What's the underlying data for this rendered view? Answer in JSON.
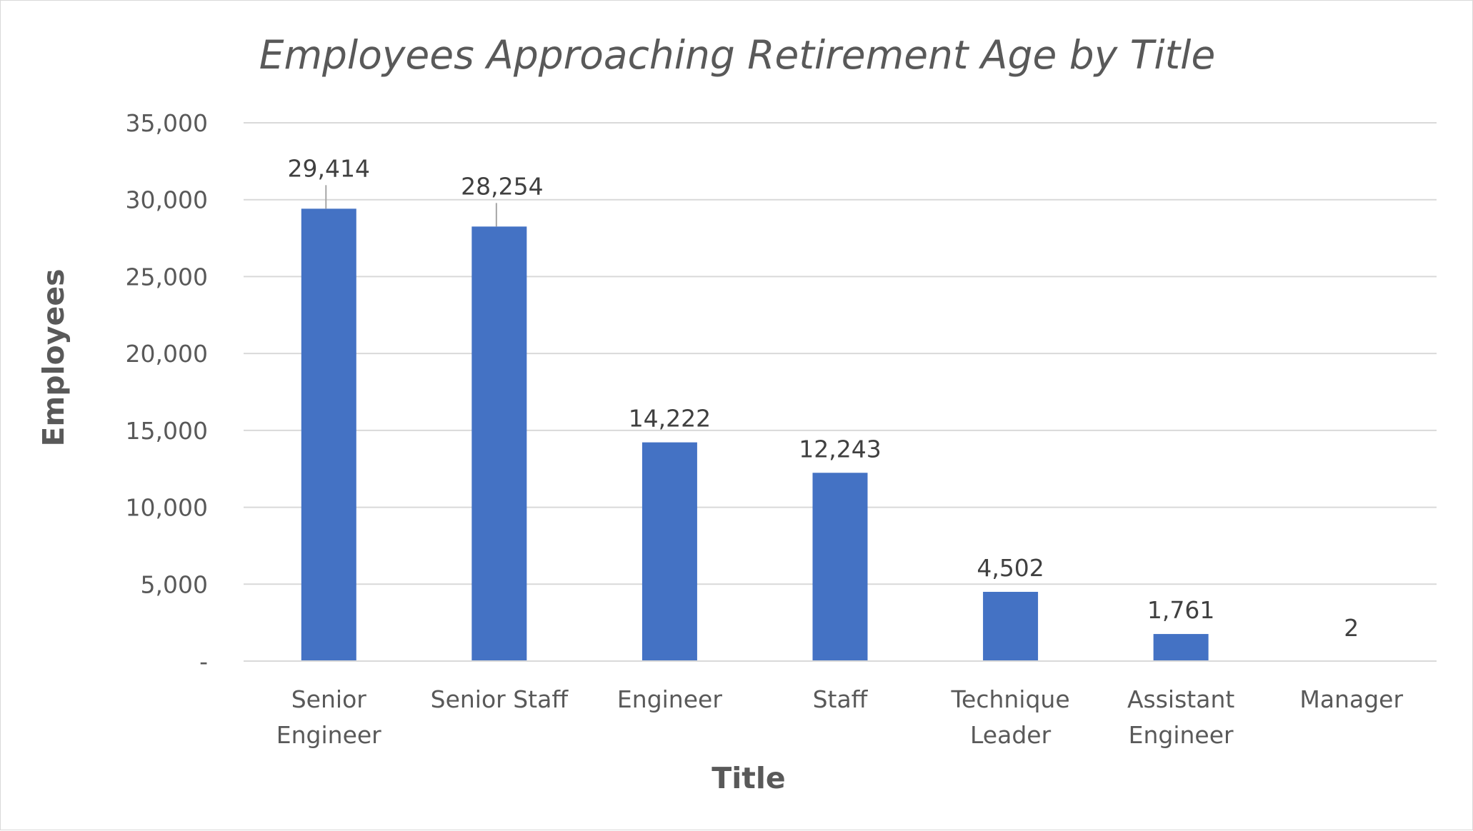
{
  "chart_data": {
    "type": "bar",
    "title": "Employees Approaching Retirement Age by Title",
    "xlabel": "Title",
    "ylabel": "Employees",
    "categories": [
      [
        "Senior",
        "Engineer"
      ],
      [
        "Senior Staff"
      ],
      [
        "Engineer"
      ],
      [
        "Staff"
      ],
      [
        "Technique",
        "Leader"
      ],
      [
        "Assistant",
        "Engineer"
      ],
      [
        "Manager"
      ]
    ],
    "values": [
      29414,
      28254,
      14222,
      12243,
      4502,
      1761,
      2
    ],
    "data_labels": [
      "29,414",
      "28,254",
      "14,222",
      "12,243",
      "4,502",
      "1,761",
      "2"
    ],
    "ylim": [
      0,
      35000
    ],
    "yticks": [
      0,
      5000,
      10000,
      15000,
      20000,
      25000,
      30000,
      35000
    ],
    "ytick_labels": [
      "-",
      "5,000",
      "10,000",
      "15,000",
      "20,000",
      "25,000",
      "30,000",
      "35,000"
    ],
    "grid": true,
    "legend": "none",
    "bar_color": "#4472C4"
  }
}
